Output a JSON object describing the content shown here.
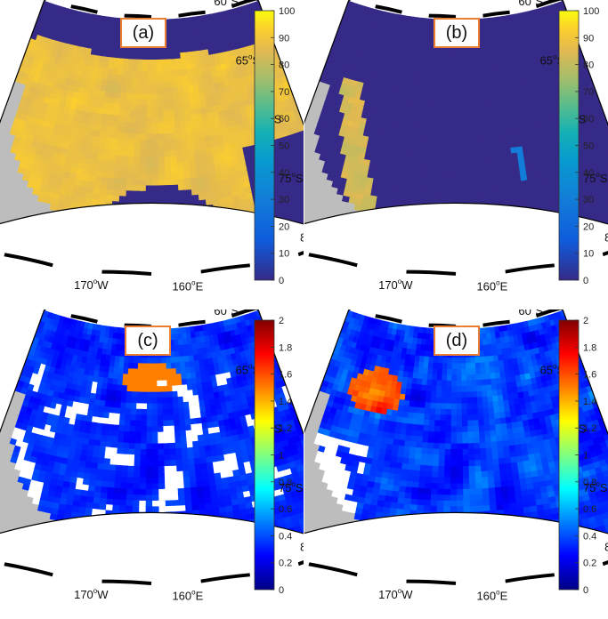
{
  "panels": [
    {
      "id": "a",
      "label": "(a)",
      "kind": "fraction",
      "colorbar": "parula",
      "lat_labels": [
        "60",
        "65",
        "70",
        "75",
        "80"
      ],
      "lon_labels": [
        "160",
        "170"
      ],
      "lat_suffix": "S",
      "lon_suffixes": [
        "E",
        "W"
      ],
      "deg": "o",
      "field": "high-fill"
    },
    {
      "id": "b",
      "label": "(b)",
      "kind": "fraction",
      "colorbar": "parula",
      "lat_labels": [
        "60",
        "65",
        "70",
        "75",
        "80"
      ],
      "lon_labels": [
        "160",
        "170"
      ],
      "lat_suffix": "S",
      "lon_suffixes": [
        "E",
        "W"
      ],
      "deg": "o",
      "field": "low-fill"
    },
    {
      "id": "c",
      "label": "(c)",
      "kind": "thickness",
      "colorbar": "jet",
      "lat_labels": [
        "60",
        "65",
        "70",
        "75",
        "80"
      ],
      "lon_labels": [
        "160",
        "170"
      ],
      "lat_suffix": "S",
      "lon_suffixes": [
        "E",
        "W"
      ],
      "deg": "o",
      "field": "patchy"
    },
    {
      "id": "d",
      "label": "(d)",
      "kind": "thickness",
      "colorbar": "jet",
      "lat_labels": [
        "60",
        "65",
        "70",
        "75",
        "80"
      ],
      "lon_labels": [
        "160",
        "170"
      ],
      "lat_suffix": "S",
      "lon_suffixes": [
        "E",
        "W"
      ],
      "deg": "o",
      "field": "low-blue"
    }
  ],
  "chart_data": [
    {
      "type": "heatmap",
      "panel": "a",
      "colorbar_ticks": [
        "0",
        "10",
        "20",
        "30",
        "40",
        "50",
        "60",
        "70",
        "80",
        "90",
        "100"
      ],
      "clim": [
        0,
        100
      ],
      "lat_range": [
        60,
        80
      ],
      "lon_labels": [
        "160E",
        "170W"
      ]
    },
    {
      "type": "heatmap",
      "panel": "b",
      "colorbar_ticks": [
        "0",
        "10",
        "20",
        "30",
        "40",
        "50",
        "60",
        "70",
        "80",
        "90",
        "100"
      ],
      "clim": [
        0,
        100
      ],
      "lat_range": [
        60,
        80
      ],
      "lon_labels": [
        "160E",
        "170W"
      ]
    },
    {
      "type": "heatmap",
      "panel": "c",
      "colorbar_ticks": [
        "0",
        "0.2",
        "0.4",
        "0.6",
        "0.8",
        "1",
        "1.2",
        "1.4",
        "1.6",
        "1.8",
        "2"
      ],
      "clim": [
        0,
        2
      ],
      "lat_range": [
        60,
        80
      ],
      "lon_labels": [
        "160E",
        "170W"
      ]
    },
    {
      "type": "heatmap",
      "panel": "d",
      "colorbar_ticks": [
        "0",
        "0.2",
        "0.4",
        "0.6",
        "0.8",
        "1",
        "1.2",
        "1.4",
        "1.6",
        "1.8",
        "2"
      ],
      "clim": [
        0,
        2
      ],
      "lat_range": [
        60,
        80
      ],
      "lon_labels": [
        "160E",
        "170W"
      ]
    }
  ]
}
